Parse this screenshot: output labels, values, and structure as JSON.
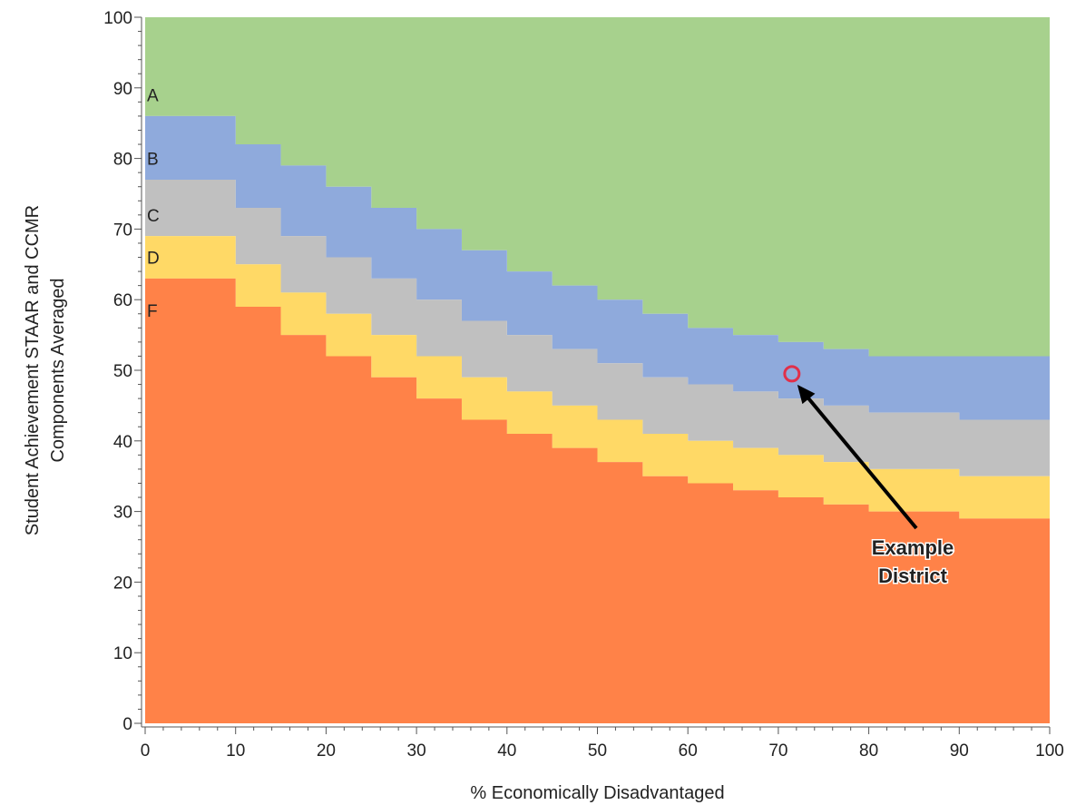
{
  "chart_data": {
    "type": "area",
    "xlabel": "% Economically Disadvantaged",
    "ylabel_lines": [
      "Student Achievement STAAR and CCMR",
      "Components Averaged"
    ],
    "xlim": [
      0,
      100
    ],
    "ylim": [
      0,
      100
    ],
    "x_ticks": [
      0,
      10,
      20,
      30,
      40,
      50,
      60,
      70,
      80,
      90,
      100
    ],
    "y_ticks": [
      0,
      10,
      20,
      30,
      40,
      50,
      60,
      70,
      80,
      90,
      100
    ],
    "grid": false,
    "x": [
      0,
      5,
      10,
      15,
      20,
      25,
      30,
      35,
      40,
      45,
      50,
      55,
      60,
      65,
      70,
      75,
      80,
      85,
      90,
      95,
      100
    ],
    "series": [
      {
        "name": "A",
        "color": "#a7d18d",
        "lower": [
          86,
          86,
          82,
          79,
          76,
          73,
          70,
          67,
          64,
          62,
          60,
          58,
          56,
          55,
          54,
          53,
          52,
          52,
          52,
          52,
          52
        ]
      },
      {
        "name": "B",
        "color": "#8faadc",
        "lower": [
          77,
          77,
          73,
          69,
          66,
          63,
          60,
          57,
          55,
          53,
          51,
          49,
          48,
          47,
          46,
          45,
          44,
          44,
          43,
          43,
          43
        ]
      },
      {
        "name": "C",
        "color": "#c0c0c0",
        "lower": [
          69,
          69,
          65,
          61,
          58,
          55,
          52,
          49,
          47,
          45,
          43,
          41,
          40,
          39,
          38,
          37,
          36,
          36,
          35,
          35,
          35
        ]
      },
      {
        "name": "D",
        "color": "#ffd966",
        "lower": [
          63,
          63,
          59,
          55,
          52,
          49,
          46,
          43,
          41,
          39,
          37,
          35,
          34,
          33,
          32,
          31,
          30,
          30,
          29,
          29,
          29
        ]
      },
      {
        "name": "F",
        "color": "#ff8248",
        "lower": [
          0,
          0,
          0,
          0,
          0,
          0,
          0,
          0,
          0,
          0,
          0,
          0,
          0,
          0,
          0,
          0,
          0,
          0,
          0,
          0,
          0
        ]
      }
    ],
    "band_labels": [
      {
        "text": "A",
        "y": 89
      },
      {
        "text": "B",
        "y": 80
      },
      {
        "text": "C",
        "y": 72
      },
      {
        "text": "D",
        "y": 66
      },
      {
        "text": "F",
        "y": 58.5
      }
    ],
    "annotation": {
      "lines": [
        "Example",
        "District"
      ],
      "point": {
        "x": 71.5,
        "y": 49.5
      },
      "marker_color": "#e0304a",
      "arrow_color": "#000000"
    }
  }
}
